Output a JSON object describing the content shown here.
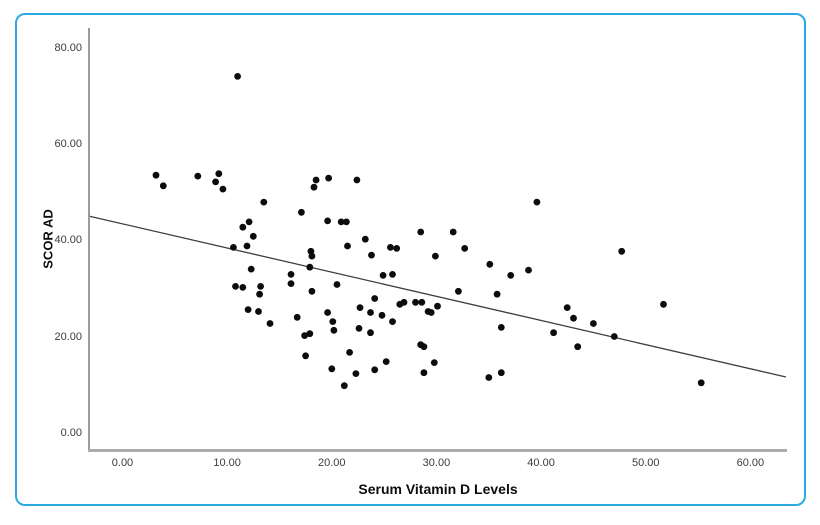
{
  "style": {
    "frame_border_color": "#2BAAE1",
    "background": "#FFFFFF",
    "dot_color": "#0C0C0C",
    "fit_line_color": "#3F3F3F",
    "y_axis_color": "#9B9B9B",
    "x_axis_color": "#ABABAB",
    "tick_label_color": "#3C3C3C",
    "title_color": "#0C0C0C"
  },
  "chart_data": {
    "type": "scatter",
    "title": "",
    "xlabel": "Serum Vitamin D Levels",
    "ylabel": "SCOR AD",
    "legend": "none",
    "grid": false,
    "xlim": [
      -3.2,
      63.5
    ],
    "ylim": [
      -3.76,
      84.05
    ],
    "x_ticks": [
      {
        "value": 0,
        "label": "0.00"
      },
      {
        "value": 10,
        "label": "10.00"
      },
      {
        "value": 20,
        "label": "20.00"
      },
      {
        "value": 30,
        "label": "30.00"
      },
      {
        "value": 40,
        "label": "40.00"
      },
      {
        "value": 50,
        "label": "50.00"
      },
      {
        "value": 60,
        "label": "60.00"
      }
    ],
    "y_ticks": [
      {
        "value": 0,
        "label": "0.00"
      },
      {
        "value": 20,
        "label": "20.00"
      },
      {
        "value": 40,
        "label": "40.00"
      },
      {
        "value": 60,
        "label": "60.00"
      },
      {
        "value": 80,
        "label": "80.00"
      }
    ],
    "fit_line": {
      "x1": -3.2,
      "y1": 45.0,
      "x2": 63.4,
      "y2": 11.6
    },
    "points": [
      [
        11.0,
        74.0
      ],
      [
        3.2,
        53.5
      ],
      [
        3.9,
        51.3
      ],
      [
        7.2,
        53.3
      ],
      [
        9.2,
        53.8
      ],
      [
        8.9,
        52.1
      ],
      [
        9.6,
        50.6
      ],
      [
        13.5,
        47.9
      ],
      [
        17.1,
        45.8
      ],
      [
        18.5,
        52.5
      ],
      [
        18.3,
        51.0
      ],
      [
        19.7,
        52.9
      ],
      [
        22.4,
        52.5
      ],
      [
        39.6,
        47.9
      ],
      [
        19.6,
        44.0
      ],
      [
        20.9,
        43.8
      ],
      [
        21.4,
        43.8
      ],
      [
        11.5,
        42.7
      ],
      [
        12.1,
        43.8
      ],
      [
        12.5,
        40.8
      ],
      [
        10.6,
        38.5
      ],
      [
        11.9,
        38.8
      ],
      [
        18.0,
        37.7
      ],
      [
        18.1,
        36.7
      ],
      [
        21.5,
        38.8
      ],
      [
        23.2,
        40.2
      ],
      [
        23.8,
        36.9
      ],
      [
        25.6,
        38.5
      ],
      [
        26.2,
        38.3
      ],
      [
        28.5,
        41.7
      ],
      [
        31.6,
        41.7
      ],
      [
        32.7,
        38.3
      ],
      [
        29.9,
        36.7
      ],
      [
        35.1,
        35.0
      ],
      [
        47.7,
        37.7
      ],
      [
        37.1,
        32.7
      ],
      [
        38.8,
        33.8
      ],
      [
        17.9,
        34.4
      ],
      [
        12.3,
        34.0
      ],
      [
        10.8,
        30.4
      ],
      [
        11.5,
        30.2
      ],
      [
        13.2,
        30.4
      ],
      [
        13.1,
        28.8
      ],
      [
        16.1,
        32.9
      ],
      [
        16.1,
        31.0
      ],
      [
        18.1,
        29.4
      ],
      [
        20.5,
        30.8
      ],
      [
        24.9,
        32.7
      ],
      [
        25.8,
        32.9
      ],
      [
        24.1,
        27.9
      ],
      [
        32.1,
        29.4
      ],
      [
        35.8,
        28.8
      ],
      [
        12.0,
        25.6
      ],
      [
        13.0,
        25.2
      ],
      [
        14.1,
        22.7
      ],
      [
        16.7,
        24.0
      ],
      [
        19.6,
        25.0
      ],
      [
        20.1,
        23.1
      ],
      [
        20.2,
        21.3
      ],
      [
        22.7,
        26.0
      ],
      [
        23.7,
        25.0
      ],
      [
        24.8,
        24.4
      ],
      [
        25.8,
        23.1
      ],
      [
        26.5,
        26.7
      ],
      [
        26.9,
        27.1
      ],
      [
        28.0,
        27.1
      ],
      [
        28.6,
        27.1
      ],
      [
        29.2,
        25.2
      ],
      [
        29.5,
        25.0
      ],
      [
        30.1,
        26.3
      ],
      [
        36.2,
        21.9
      ],
      [
        41.2,
        20.8
      ],
      [
        42.5,
        26.0
      ],
      [
        43.1,
        23.8
      ],
      [
        45.0,
        22.7
      ],
      [
        47.0,
        20.0
      ],
      [
        43.5,
        17.9
      ],
      [
        51.7,
        26.7
      ],
      [
        17.4,
        20.2
      ],
      [
        17.9,
        20.6
      ],
      [
        22.6,
        21.7
      ],
      [
        23.7,
        20.8
      ],
      [
        28.5,
        18.3
      ],
      [
        28.8,
        17.9
      ],
      [
        17.5,
        16.0
      ],
      [
        21.7,
        16.7
      ],
      [
        20.0,
        13.3
      ],
      [
        22.3,
        12.3
      ],
      [
        24.1,
        13.1
      ],
      [
        25.2,
        14.8
      ],
      [
        28.8,
        12.5
      ],
      [
        29.8,
        14.6
      ],
      [
        21.2,
        9.8
      ],
      [
        35.0,
        11.5
      ],
      [
        36.2,
        12.5
      ],
      [
        55.3,
        10.4
      ]
    ]
  }
}
